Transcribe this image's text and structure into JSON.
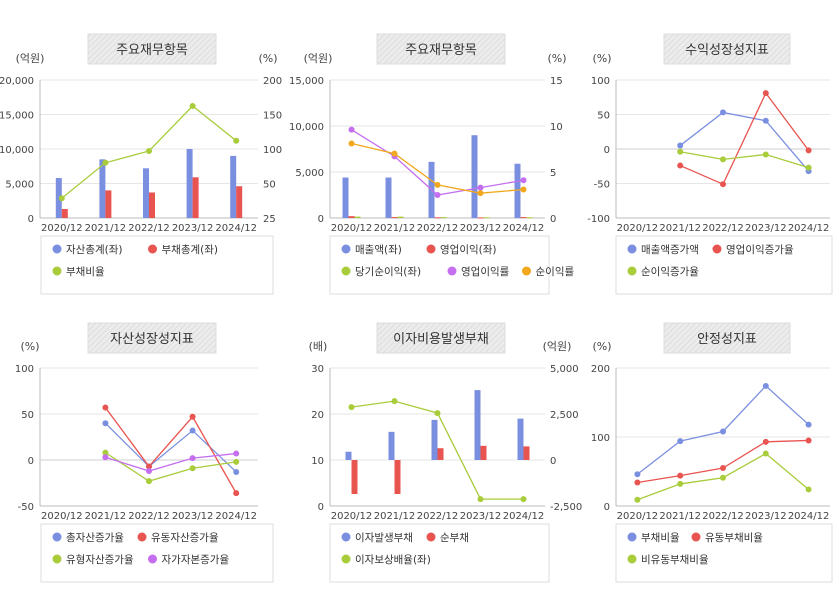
{
  "colors": {
    "blue": "#7b8fe0",
    "red": "#e85450",
    "green": "#a8cc3a",
    "purple": "#c56ef0",
    "orange": "#f2a81c",
    "title_bg": "#e8e8e8",
    "grid": "#e6e6e6"
  },
  "categories": [
    "2020/12",
    "2021/12",
    "2022/12",
    "2023/12",
    "2024/12"
  ],
  "chart_data": [
    {
      "type": "bar",
      "title": "주요재무항목",
      "left_unit": "(억원)",
      "right_unit": "(%)",
      "left_ticks": [
        "20,000",
        "15,000",
        "10,000",
        "5,000",
        "0"
      ],
      "right_ticks": [
        "200",
        "150",
        "100",
        "50",
        "25"
      ],
      "left_range": [
        0,
        20000
      ],
      "right_range": [
        25,
        200
      ],
      "series": [
        {
          "name": "자산총계(좌)",
          "kind": "bar",
          "axis": "left",
          "color": "#7b8fe0",
          "values": [
            5800,
            8500,
            7200,
            10000,
            9000
          ]
        },
        {
          "name": "부채총계(좌)",
          "kind": "bar",
          "axis": "left",
          "color": "#e85450",
          "values": [
            1300,
            4000,
            3700,
            5900,
            4600
          ]
        },
        {
          "name": "부채비율",
          "kind": "line",
          "axis": "right",
          "color": "#a8cc3a",
          "values": [
            50,
            95,
            110,
            167,
            123
          ]
        }
      ]
    },
    {
      "type": "bar",
      "title": "주요재무항목",
      "left_unit": "(억원)",
      "right_unit": "(%)",
      "left_ticks": [
        "15,000",
        "10,000",
        "5,000",
        "0"
      ],
      "right_ticks": [
        "15",
        "10",
        "5",
        "0"
      ],
      "left_range": [
        0,
        15000
      ],
      "right_range": [
        0,
        15
      ],
      "series": [
        {
          "name": "매출액(좌)",
          "kind": "bar",
          "axis": "left",
          "color": "#7b8fe0",
          "values": [
            4400,
            4400,
            6100,
            9000,
            5900
          ]
        },
        {
          "name": "영업이익(좌)",
          "kind": "bar",
          "axis": "left",
          "color": "#e85450",
          "values": [
            200,
            100,
            80,
            60,
            100
          ]
        },
        {
          "name": "당기순이익(좌)",
          "kind": "bar",
          "axis": "left",
          "color": "#a8cc3a",
          "values": [
            150,
            150,
            100,
            80,
            80
          ]
        },
        {
          "name": "영업이익률",
          "kind": "line",
          "axis": "right",
          "color": "#c56ef0",
          "values": [
            9.6,
            6.7,
            2.5,
            3.3,
            4.1
          ]
        },
        {
          "name": "순이익률",
          "kind": "line",
          "axis": "right",
          "color": "#f2a81c",
          "values": [
            8.1,
            7.0,
            3.6,
            2.7,
            3.1
          ]
        }
      ]
    },
    {
      "type": "line",
      "title": "수익성장성지표",
      "left_unit": "(%)",
      "right_unit": "",
      "left_ticks": [
        "100",
        "50",
        "0",
        "-50",
        "-100"
      ],
      "right_ticks": [],
      "left_range": [
        -100,
        100
      ],
      "series": [
        {
          "name": "매출액증가액",
          "kind": "line",
          "axis": "left",
          "color": "#7b8fe0",
          "values": [
            null,
            5,
            53,
            41,
            -32
          ]
        },
        {
          "name": "영업이익증가율",
          "kind": "line",
          "axis": "left",
          "color": "#e85450",
          "values": [
            null,
            -24,
            -51,
            81,
            -2
          ]
        },
        {
          "name": "순이익증가율",
          "kind": "line",
          "axis": "left",
          "color": "#a8cc3a",
          "values": [
            null,
            -4,
            -15,
            -8,
            -27
          ]
        }
      ]
    },
    {
      "type": "line",
      "title": "자산성장성지표",
      "left_unit": "(%)",
      "right_unit": "",
      "left_ticks": [
        "100",
        "50",
        "0",
        "-50"
      ],
      "right_ticks": [],
      "left_range": [
        -50,
        100
      ],
      "series": [
        {
          "name": "총자산증가율",
          "kind": "line",
          "axis": "left",
          "color": "#7b8fe0",
          "values": [
            null,
            40,
            -7,
            32,
            -13
          ]
        },
        {
          "name": "유동자산증가율",
          "kind": "line",
          "axis": "left",
          "color": "#e85450",
          "values": [
            null,
            57,
            -7,
            47,
            -36
          ]
        },
        {
          "name": "유형자산증가율",
          "kind": "line",
          "axis": "left",
          "color": "#a8cc3a",
          "values": [
            null,
            8,
            -23,
            -9,
            -2
          ]
        },
        {
          "name": "자가자본증가율",
          "kind": "line",
          "axis": "left",
          "color": "#c56ef0",
          "values": [
            null,
            3,
            -12,
            2,
            7
          ]
        }
      ]
    },
    {
      "type": "bar",
      "title": "이자비용발생부채",
      "left_unit": "(배)",
      "right_unit": "(억원)",
      "left_ticks": [
        "30",
        "20",
        "10",
        "0"
      ],
      "right_ticks": [
        "5,000",
        "2,500",
        "0",
        "-2,500"
      ],
      "left_range": [
        0,
        30
      ],
      "right_range": [
        -2500,
        5000
      ],
      "series": [
        {
          "name": "이자발생부채",
          "kind": "bar",
          "axis": "right",
          "color": "#7b8fe0",
          "values": [
            450,
            1530,
            2180,
            3800,
            2250
          ]
        },
        {
          "name": "순부채",
          "kind": "bar",
          "axis": "right",
          "color": "#e85450",
          "values": [
            -1850,
            -1850,
            640,
            770,
            740
          ]
        },
        {
          "name": "이자보상배율(좌)",
          "kind": "line",
          "axis": "left",
          "color": "#a8cc3a",
          "values": [
            21.5,
            22.8,
            20.2,
            1.5,
            1.5
          ]
        }
      ]
    },
    {
      "type": "line",
      "title": "안정성지표",
      "left_unit": "(%)",
      "right_unit": "",
      "left_ticks": [
        "200",
        "100",
        "0"
      ],
      "right_ticks": [],
      "left_range": [
        0,
        200
      ],
      "series": [
        {
          "name": "부채비율",
          "kind": "line",
          "axis": "left",
          "color": "#7b8fe0",
          "values": [
            46,
            94,
            108,
            174,
            118
          ]
        },
        {
          "name": "유동부채비율",
          "kind": "line",
          "axis": "left",
          "color": "#e85450",
          "values": [
            34,
            44,
            55,
            93,
            95
          ]
        },
        {
          "name": "비유동부채비율",
          "kind": "line",
          "axis": "left",
          "color": "#a8cc3a",
          "values": [
            9,
            32,
            41,
            76,
            24
          ]
        }
      ]
    }
  ]
}
